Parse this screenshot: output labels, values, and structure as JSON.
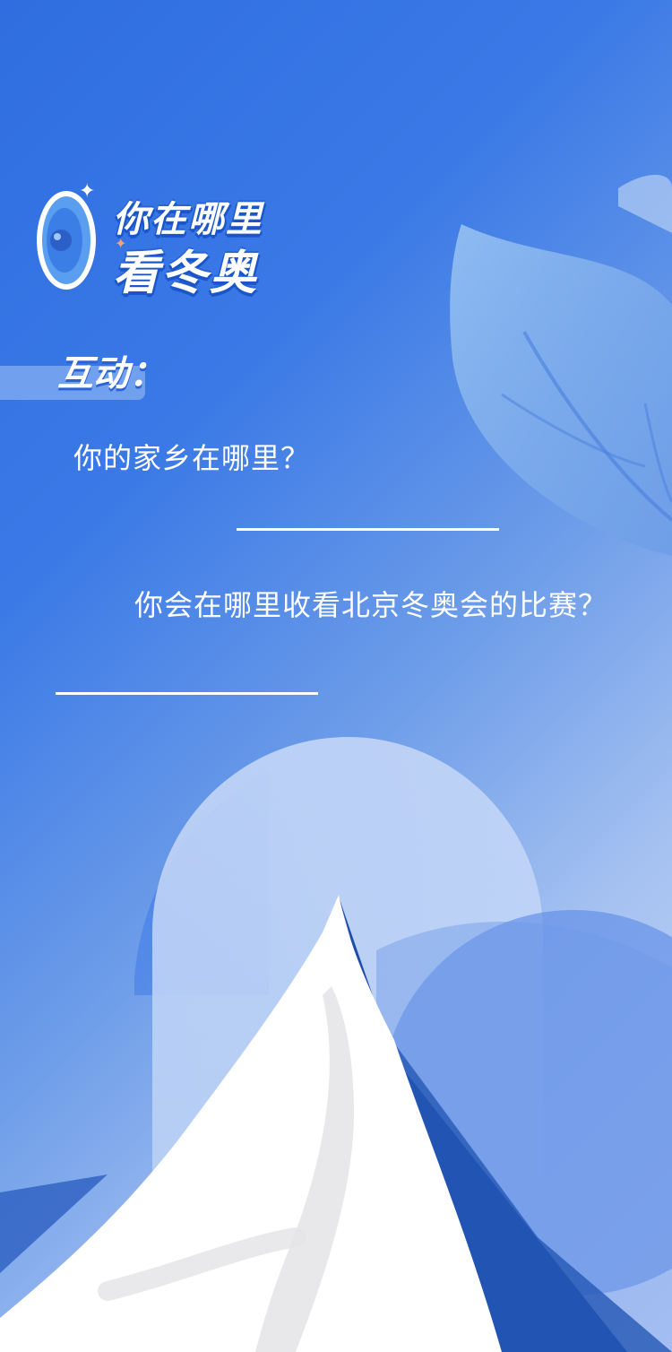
{
  "header": {
    "title_line1": "你在哪里",
    "title_line2": "看冬奥"
  },
  "section": {
    "label": "互动："
  },
  "questions": [
    {
      "text": "你的家乡在哪里？"
    },
    {
      "text": "你会在哪里收看北京冬奥会的比赛？"
    }
  ],
  "colors": {
    "background_start": "#2f6ee0",
    "background_end": "#cfdcf7",
    "text": "#ffffff",
    "title_shadow": "#1a56c9",
    "snow": "#ffffff",
    "mountain_shadow": "#1d4ea8"
  },
  "icons": [
    "eye-badge-icon",
    "sparkle-icon",
    "leaf-decoration",
    "mountain-illustration"
  ]
}
